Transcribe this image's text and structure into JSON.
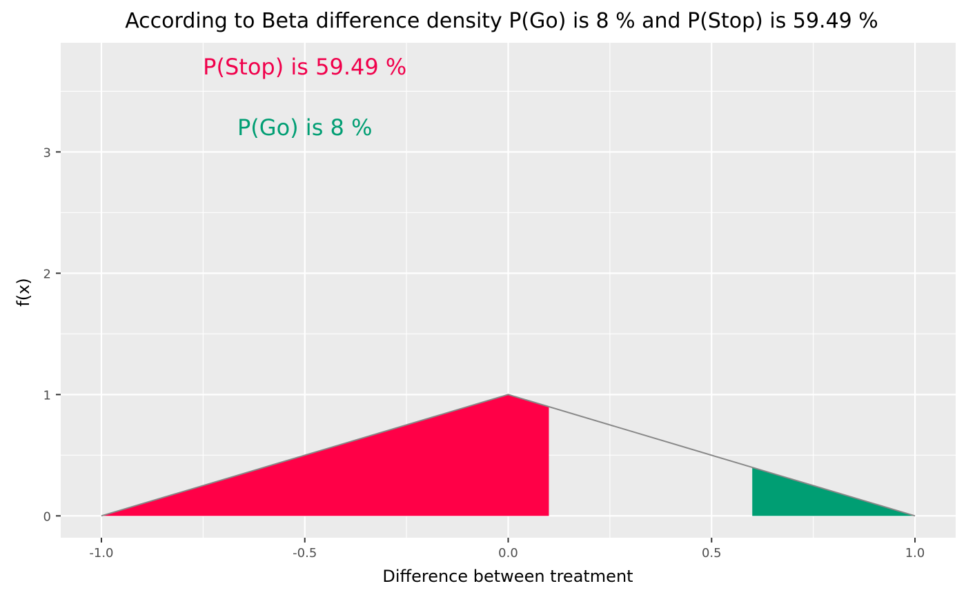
{
  "chart_data": {
    "type": "area",
    "title": "According to Beta difference density P(Go) is 8 % and P(Stop) is 59.49 %",
    "xlabel": "Difference between treatment",
    "ylabel": "f(x)",
    "xlim": [
      -1.1,
      1.1
    ],
    "ylim": [
      -0.18,
      3.9
    ],
    "x_ticks": [
      -1.0,
      -0.5,
      0.0,
      0.5,
      1.0
    ],
    "x_tick_labels": [
      "-1.0",
      "-0.5",
      "0.0",
      "0.5",
      "1.0"
    ],
    "y_ticks": [
      0,
      1,
      2,
      3
    ],
    "y_tick_labels": [
      "0",
      "1",
      "2",
      "3"
    ],
    "x_minor": [
      -0.75,
      -0.25,
      0.25,
      0.75
    ],
    "y_minor": [
      0.5,
      1.5,
      2.5,
      3.5
    ],
    "grid": true,
    "density": {
      "x": [
        -1.0,
        0.0,
        1.0
      ],
      "y": [
        0,
        1,
        0
      ],
      "color": "#888888"
    },
    "regions": [
      {
        "label": "Stop",
        "from": -1.0,
        "to": 0.1,
        "color": "#FF0047"
      },
      {
        "label": "Go",
        "from": 0.6,
        "to": 1.0,
        "color": "#009E73"
      }
    ],
    "annotations": [
      {
        "text": "P(Stop) is 59.49 %",
        "x": -0.5,
        "y": 3.7,
        "color": "#F0004B"
      },
      {
        "text": "P(Go) is 8 %",
        "x": -0.5,
        "y": 3.2,
        "color": "#009E73"
      }
    ],
    "panel_background": "#EBEBEB",
    "grid_color": "#FFFFFF"
  }
}
